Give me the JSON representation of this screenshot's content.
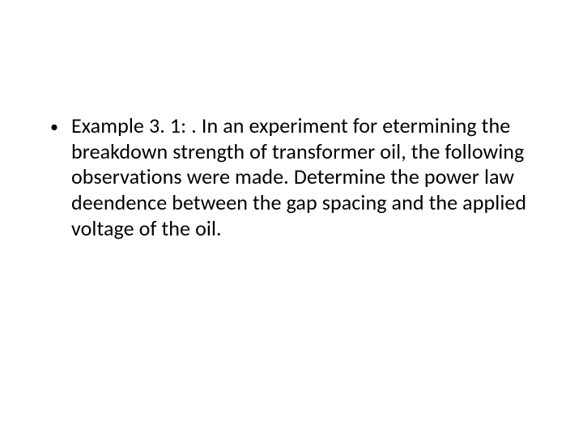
{
  "slide": {
    "bullet": {
      "marker": "•",
      "text": "Example 3. 1: . In an experiment for  etermining the breakdown strength of transformer oil, the following observations were made. Determine the power law deendence between the gap spacing and the applied voltage of the oil."
    },
    "style": {
      "background_color": "#ffffff",
      "text_color": "#000000",
      "font_family": "Calibri",
      "bullet_fontsize": 26,
      "line_height": 1.22
    }
  }
}
